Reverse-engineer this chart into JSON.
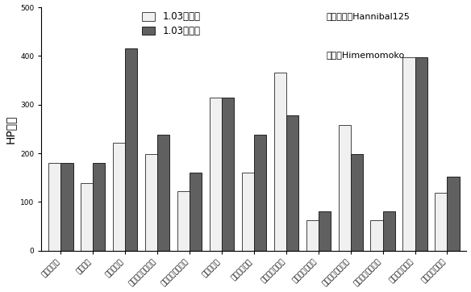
{
  "categories": [
    "不蓄力拜年",
    "飞渡浮舟",
    "飞渡庭涌云",
    "笝名十字斩（纸）",
    "笝名十字斩（无）",
    "蓄力不死斩",
    "不蓄力不死斩",
    "蓄力龙闪（纸）",
    "蓄力龙闪（无）",
    "不蓄力龙闪（纸）",
    "不蓄力龙闪（无）",
    "秘传一心（纸）",
    "秘传一心（无）"
  ],
  "before": [
    180,
    138,
    222,
    198,
    122,
    315,
    160,
    365,
    62,
    258,
    62,
    398,
    118
  ],
  "after": [
    180,
    180,
    415,
    238,
    160,
    315,
    238,
    278,
    80,
    198,
    80,
    398,
    152
  ],
  "bar_color_before": "#f0f0f0",
  "bar_color_after": "#606060",
  "bar_edge_before": "#444444",
  "bar_edge_after": "#222222",
  "ylabel": "HP伤害",
  "ylim": [
    0,
    500
  ],
  "yticks": [
    0,
    100,
    200,
    300,
    400,
    500
  ],
  "legend_before": "1.03补丁前",
  "legend_after": "1.03补丁后",
  "annotation1": "数据挖据：Hannibal125",
  "annotation2": "制图：Himemomoko",
  "background_color": "#ffffff",
  "ylabel_fontsize": 10,
  "tick_fontsize": 6.5,
  "legend_fontsize": 8.5,
  "annot_fontsize": 8
}
